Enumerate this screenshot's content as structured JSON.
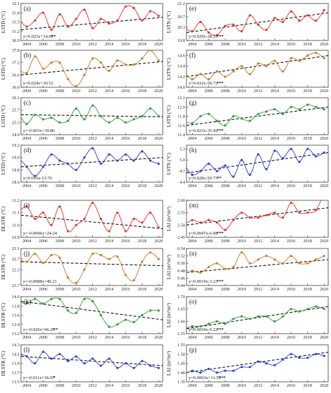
{
  "chart_data": [
    {
      "panel": "(a)",
      "type": "line",
      "ylabel": "LSTD (°C)",
      "ylim": [
        30.9,
        32.1
      ],
      "yticks": [
        "30.9",
        "31.2",
        "31.5",
        "31.8",
        "32.1"
      ],
      "xlim": [
        2003.3,
        2020.5
      ],
      "xticks": [
        "2004",
        "2006",
        "2008",
        "2010",
        "2012",
        "2014",
        "2016",
        "2018",
        "2020"
      ],
      "color": "#e8302a",
      "trend_eq": "y=0.023x+14.09",
      "sig": "**",
      "trend": [
        31.25,
        31.65
      ],
      "x": [
        2003,
        2004,
        2005,
        2006,
        2007,
        2008,
        2009,
        2010,
        2011,
        2012,
        2013,
        2014,
        2015,
        2016,
        2017,
        2018,
        2019,
        2020
      ],
      "y": [
        31.6,
        31.35,
        31.55,
        31.8,
        31.25,
        31.75,
        31.35,
        31.6,
        31.9,
        31.3,
        31.6,
        31.45,
        31.55,
        32.0,
        31.95,
        31.55,
        31.85,
        31.7
      ]
    },
    {
      "panel": "(b)",
      "type": "line",
      "ylabel": "LSTD (°C)",
      "ylim": [
        36.0,
        37.8
      ],
      "yticks": [
        "36.0",
        "36.6",
        "37.2",
        "37.8"
      ],
      "xlim": [
        2003.3,
        2020.5
      ],
      "xticks": [
        "2004",
        "2006",
        "2008",
        "2010",
        "2012",
        "2014",
        "2016",
        "2018",
        "2020"
      ],
      "color": "#c8792a",
      "trend_eq": "y=0.024x+10.52",
      "sig": "",
      "trend": [
        36.6,
        37.25
      ],
      "x": [
        2003,
        2004,
        2005,
        2006,
        2007,
        2008,
        2009,
        2010,
        2011,
        2012,
        2013,
        2014,
        2015,
        2016,
        2017,
        2018,
        2019,
        2020
      ],
      "y": [
        36.9,
        36.7,
        37.5,
        36.9,
        37.2,
        37.2,
        36.4,
        36.05,
        36.6,
        37.4,
        37.2,
        36.8,
        37.3,
        37.1,
        37.1,
        37.4,
        37.8,
        37.3
      ]
    },
    {
      "panel": "(c)",
      "type": "line",
      "ylabel": "LSTD (°C)",
      "ylim": [
        24.9,
        26.1
      ],
      "yticks": [
        "24.9",
        "25.3",
        "25.7",
        "26.1"
      ],
      "xlim": [
        2003.3,
        2020.5
      ],
      "xticks": [
        "2004",
        "2006",
        "2008",
        "2010",
        "2012",
        "2014",
        "2016",
        "2018",
        "2020"
      ],
      "color": "#2e9a3a",
      "trend_eq": "y=-0.003x+30.86",
      "sig": "",
      "trend": [
        25.55,
        25.48
      ],
      "x": [
        2003,
        2004,
        2005,
        2006,
        2007,
        2008,
        2009,
        2010,
        2011,
        2012,
        2013,
        2014,
        2015,
        2016,
        2017,
        2018,
        2019,
        2020
      ],
      "y": [
        25.6,
        25.25,
        25.55,
        25.4,
        25.45,
        25.3,
        25.35,
        25.75,
        25.4,
        25.85,
        25.5,
        25.3,
        25.45,
        25.3,
        25.4,
        25.5,
        25.75,
        25.5
      ]
    },
    {
      "panel": "(d)",
      "type": "line",
      "ylabel": "LSTD (°C)",
      "ylim": [
        18.6,
        19.2
      ],
      "yticks": [
        "18.6",
        "18.8",
        "19.0",
        "19.2"
      ],
      "xlim": [
        2003.3,
        2020.5
      ],
      "xticks": [
        "2004",
        "2006",
        "2008",
        "2010",
        "2012",
        "2014",
        "2016",
        "2018",
        "2020"
      ],
      "color": "#2a3fd8",
      "trend_eq": "y=0.016x-13.76",
      "sig": "",
      "trend": [
        18.85,
        19.0
      ],
      "x": [
        2003,
        2004,
        2005,
        2006,
        2007,
        2008,
        2009,
        2010,
        2011,
        2012,
        2013,
        2014,
        2015,
        2016,
        2017,
        2018,
        2019,
        2020
      ],
      "y": [
        19.0,
        18.85,
        18.7,
        18.85,
        19.05,
        18.95,
        18.9,
        18.8,
        19.0,
        19.15,
        18.9,
        19.05,
        18.95,
        19.05,
        18.95,
        19.1,
        18.95,
        18.9
      ]
    },
    {
      "panel": "(e)",
      "type": "line",
      "ylabel": "LSTN (°C)",
      "ylim": [
        19.8,
        21.2
      ],
      "yticks": [
        "19.8",
        "20.3",
        "20.7",
        "21.2"
      ],
      "xlim": [
        2003.3,
        2020.5
      ],
      "xticks": [
        "2004",
        "2006",
        "2008",
        "2010",
        "2012",
        "2014",
        "2016",
        "2018",
        "2020"
      ],
      "color": "#e8302a",
      "trend_eq": "y=0.029x-38.33",
      "sig": "***",
      "trend": [
        20.1,
        20.85
      ],
      "x": [
        2003,
        2004,
        2005,
        2006,
        2007,
        2008,
        2009,
        2010,
        2011,
        2012,
        2013,
        2014,
        2015,
        2016,
        2017,
        2018,
        2019,
        2020
      ],
      "y": [
        20.3,
        20.15,
        20.5,
        20.1,
        20.0,
        20.35,
        20.4,
        20.15,
        20.75,
        20.4,
        20.2,
        20.65,
        20.5,
        20.9,
        20.55,
        20.75,
        20.55,
        20.95
      ]
    },
    {
      "panel": "(f)",
      "type": "line",
      "ylabel": "LSTN (°C)",
      "ylim": [
        14.0,
        14.7
      ],
      "yticks": [
        "14.0",
        "14.2",
        "14.4",
        "14.6"
      ],
      "xlim": [
        2003.3,
        2020.5
      ],
      "xticks": [
        "2004",
        "2006",
        "2008",
        "2010",
        "2012",
        "2014",
        "2016",
        "2018",
        "2020"
      ],
      "color": "#c8792a",
      "trend_eq": "y=0.032x-50.73",
      "sig": "***",
      "trend": [
        14.2,
        14.6
      ],
      "x": [
        2003,
        2004,
        2005,
        2006,
        2007,
        2008,
        2009,
        2010,
        2011,
        2012,
        2013,
        2014,
        2015,
        2016,
        2017,
        2018,
        2019,
        2020
      ],
      "y": [
        14.3,
        14.15,
        14.25,
        14.15,
        14.3,
        14.2,
        14.3,
        14.4,
        14.25,
        14.45,
        14.4,
        14.5,
        14.3,
        14.55,
        14.5,
        14.6,
        14.65,
        14.55
      ]
    },
    {
      "panel": "(g)",
      "type": "line",
      "ylabel": "LSTN (°C)",
      "ylim": [
        11.4,
        12.2
      ],
      "yticks": [
        "11.4",
        "11.6",
        "11.8",
        "12.0",
        "12.2"
      ],
      "xlim": [
        2003.3,
        2020.5
      ],
      "xticks": [
        "2004",
        "2006",
        "2008",
        "2010",
        "2012",
        "2014",
        "2016",
        "2018",
        "2020"
      ],
      "color": "#2e9a3a",
      "trend_eq": "y=0.023x-35.42",
      "sig": "***",
      "trend": [
        11.6,
        12.0
      ],
      "x": [
        2003,
        2004,
        2005,
        2006,
        2007,
        2008,
        2009,
        2010,
        2011,
        2012,
        2013,
        2014,
        2015,
        2016,
        2017,
        2018,
        2019,
        2020
      ],
      "y": [
        11.7,
        11.65,
        11.8,
        11.85,
        11.7,
        11.6,
        11.8,
        11.75,
        11.7,
        11.85,
        11.9,
        11.95,
        11.85,
        12.0,
        11.95,
        12.05,
        12.0,
        11.95
      ]
    },
    {
      "panel": "(h)",
      "type": "line",
      "ylabel": "LSTN (°C)",
      "ylim": [
        4.4,
        5.4
      ],
      "yticks": [
        "4.4",
        "4.7",
        "5.0",
        "5.3"
      ],
      "xlim": [
        2003.3,
        2020.5
      ],
      "xticks": [
        "2004",
        "2006",
        "2008",
        "2010",
        "2012",
        "2014",
        "2016",
        "2018",
        "2020"
      ],
      "color": "#2a3fd8",
      "trend_eq": "y=0.028x-50.73",
      "sig": "**",
      "trend": [
        4.65,
        5.2
      ],
      "x": [
        2003,
        2004,
        2005,
        2006,
        2007,
        2008,
        2009,
        2010,
        2011,
        2012,
        2013,
        2014,
        2015,
        2016,
        2017,
        2018,
        2019,
        2020
      ],
      "y": [
        4.9,
        4.6,
        4.7,
        4.9,
        4.7,
        4.85,
        4.55,
        5.0,
        4.6,
        5.15,
        4.75,
        5.25,
        5.05,
        5.3,
        4.95,
        5.3,
        5.1,
        5.2
      ]
    },
    {
      "panel": "(i)",
      "type": "line",
      "ylabel": "DLSTR (°C)",
      "ylim": [
        10.9,
        11.2
      ],
      "yticks": [
        "10.9",
        "11.0",
        "11.1",
        "11.2"
      ],
      "xlim": [
        2003.3,
        2020.5
      ],
      "xticks": [
        "2004",
        "2006",
        "2008",
        "2010",
        "2012",
        "2014",
        "2016",
        "2018",
        "2020"
      ],
      "color": "#e8302a",
      "trend_eq": "y=-0.0066x+24.24",
      "sig": "",
      "trend": [
        11.08,
        10.97
      ],
      "x": [
        2003,
        2004,
        2005,
        2006,
        2007,
        2008,
        2009,
        2010,
        2011,
        2012,
        2013,
        2014,
        2015,
        2016,
        2017,
        2018,
        2019,
        2020
      ],
      "y": [
        11.1,
        11.15,
        11.05,
        11.1,
        11.0,
        11.15,
        10.95,
        11.0,
        11.05,
        11.18,
        11.05,
        10.95,
        11.1,
        10.95,
        11.05,
        11.02,
        11.1,
        10.98
      ]
    },
    {
      "panel": "(j)",
      "type": "line",
      "ylabel": "DLSTR (°C)",
      "ylim": [
        21.7,
        23.1
      ],
      "yticks": [
        "21.7",
        "22.3",
        "22.7",
        "23.1"
      ],
      "xlim": [
        2003.3,
        2020.5
      ],
      "xticks": [
        "2004",
        "2006",
        "2008",
        "2010",
        "2012",
        "2014",
        "2016",
        "2018",
        "2020"
      ],
      "color": "#c8792a",
      "trend_eq": "y=-0.0088x+40.21",
      "sig": "",
      "trend": [
        22.6,
        22.45
      ],
      "x": [
        2003,
        2004,
        2005,
        2006,
        2007,
        2008,
        2009,
        2010,
        2011,
        2012,
        2013,
        2014,
        2015,
        2016,
        2017,
        2018,
        2019,
        2020
      ],
      "y": [
        22.7,
        22.6,
        22.9,
        22.55,
        22.85,
        22.75,
        22.0,
        21.8,
        22.3,
        22.9,
        22.85,
        22.7,
        22.8,
        22.1,
        21.9,
        22.6,
        22.95,
        22.7
      ]
    },
    {
      "panel": "(k)",
      "type": "line",
      "ylabel": "DLSTR (°C)",
      "ylim": [
        13.2,
        14.0
      ],
      "yticks": [
        "13.2",
        "13.4",
        "13.6",
        "13.8",
        "14.0"
      ],
      "xlim": [
        2003.3,
        2020.5
      ],
      "xticks": [
        "2004",
        "2006",
        "2008",
        "2010",
        "2012",
        "2014",
        "2016",
        "2018",
        "2020"
      ],
      "color": "#2e9a3a",
      "trend_eq": "y=-0.026x+66.29",
      "sig": "**",
      "trend": [
        13.9,
        13.5
      ],
      "x": [
        2003,
        2004,
        2005,
        2006,
        2007,
        2008,
        2009,
        2010,
        2011,
        2012,
        2013,
        2014,
        2015,
        2016,
        2017,
        2018,
        2019,
        2020
      ],
      "y": [
        13.9,
        13.85,
        13.95,
        13.85,
        13.95,
        13.95,
        13.7,
        13.65,
        13.95,
        13.9,
        13.6,
        13.35,
        13.4,
        13.5,
        13.45,
        13.6,
        13.7,
        13.7
      ]
    },
    {
      "panel": "(l)",
      "type": "line",
      "ylabel": "DLSTR (°C)",
      "ylim": [
        13.5,
        14.3
      ],
      "yticks": [
        "13.5",
        "13.7",
        "13.9",
        "14.1",
        "14.3"
      ],
      "xlim": [
        2003.3,
        2020.5
      ],
      "xticks": [
        "2004",
        "2006",
        "2008",
        "2010",
        "2012",
        "2014",
        "2016",
        "2018",
        "2020"
      ],
      "color": "#2a3fd8",
      "trend_eq": "y=-0.011x+36.97",
      "sig": "*",
      "trend": [
        14.05,
        13.85
      ],
      "x": [
        2003,
        2004,
        2005,
        2006,
        2007,
        2008,
        2009,
        2010,
        2011,
        2012,
        2013,
        2014,
        2015,
        2016,
        2017,
        2018,
        2019,
        2020
      ],
      "y": [
        14.1,
        14.05,
        13.9,
        14.15,
        14.0,
        14.1,
        13.95,
        14.05,
        13.9,
        14.0,
        13.85,
        14.0,
        13.8,
        13.9,
        13.8,
        13.95,
        13.85,
        13.8
      ]
    },
    {
      "panel": "(m)",
      "type": "line",
      "ylabel": "LAI (m²/m²)",
      "ylim": [
        2.45,
        2.6
      ],
      "yticks": [
        "2.45",
        "2.50",
        "2.55",
        "2.60"
      ],
      "xlim": [
        2003.3,
        2020.5
      ],
      "xticks": [
        "2004",
        "2006",
        "2008",
        "2010",
        "2012",
        "2014",
        "2016",
        "2018",
        "2020"
      ],
      "color": "#e8302a",
      "trend_eq": "y=0.0047x-6.98",
      "sig": "***",
      "trend": [
        2.5,
        2.57
      ],
      "x": [
        2003,
        2004,
        2005,
        2006,
        2007,
        2008,
        2009,
        2010,
        2011,
        2012,
        2013,
        2014,
        2015,
        2016,
        2017,
        2018,
        2019,
        2020
      ],
      "y": [
        2.5,
        2.52,
        2.51,
        2.52,
        2.51,
        2.48,
        2.52,
        2.55,
        2.53,
        2.53,
        2.54,
        2.55,
        2.53,
        2.59,
        2.55,
        2.55,
        2.56,
        2.63
      ]
    },
    {
      "panel": "(n)",
      "type": "line",
      "ylabel": "LAI (m²/m²)",
      "ylim": [
        0.44,
        0.54
      ],
      "yticks": [
        "0.44",
        "0.46",
        "0.48",
        "0.50",
        "0.52",
        "0.54"
      ],
      "xlim": [
        2003.3,
        2020.5
      ],
      "xticks": [
        "2004",
        "2006",
        "2008",
        "2010",
        "2012",
        "2014",
        "2016",
        "2018",
        "2020"
      ],
      "color": "#c8792a",
      "trend_eq": "y=0.0019x-3.23",
      "sig": "***",
      "trend": [
        0.475,
        0.51
      ],
      "x": [
        2003,
        2004,
        2005,
        2006,
        2007,
        2008,
        2009,
        2010,
        2011,
        2012,
        2013,
        2014,
        2015,
        2016,
        2017,
        2018,
        2019,
        2020
      ],
      "y": [
        0.47,
        0.48,
        0.475,
        0.49,
        0.5,
        0.485,
        0.49,
        0.53,
        0.5,
        0.51,
        0.52,
        0.51,
        0.5,
        0.52,
        0.5,
        0.5,
        0.51,
        0.52
      ]
    },
    {
      "panel": "(o)",
      "type": "line",
      "ylabel": "LAI (m²/m²)",
      "ylim": [
        1.55,
        1.7
      ],
      "yticks": [
        "1.55",
        "1.60",
        "1.65",
        "1.70"
      ],
      "xlim": [
        2003.3,
        2020.5
      ],
      "xticks": [
        "2004",
        "2006",
        "2008",
        "2010",
        "2012",
        "2014",
        "2016",
        "2018",
        "2020"
      ],
      "color": "#2e9a3a",
      "trend_eq": "y=0.0054x-9.22",
      "sig": "***",
      "trend": [
        1.57,
        1.66
      ],
      "x": [
        2003,
        2004,
        2005,
        2006,
        2007,
        2008,
        2009,
        2010,
        2011,
        2012,
        2013,
        2014,
        2015,
        2016,
        2017,
        2018,
        2019,
        2020
      ],
      "y": [
        1.57,
        1.58,
        1.58,
        1.59,
        1.6,
        1.59,
        1.61,
        1.62,
        1.61,
        1.62,
        1.62,
        1.6,
        1.62,
        1.65,
        1.64,
        1.65,
        1.66,
        1.65
      ]
    },
    {
      "panel": "(p)",
      "type": "line",
      "ylabel": "LAI (m²/m²)",
      "ylim": [
        1.35,
        1.55
      ],
      "yticks": [
        "1.35",
        "1.40",
        "1.45",
        "1.50",
        "1.55"
      ],
      "xlim": [
        2003.3,
        2020.5
      ],
      "xticks": [
        "2004",
        "2006",
        "2008",
        "2010",
        "2012",
        "2014",
        "2016",
        "2018",
        "2020"
      ],
      "color": "#2a3fd8",
      "trend_eq": "y=0.0063x+11.59",
      "sig": "***",
      "trend": [
        1.4,
        1.51
      ],
      "x": [
        2003,
        2004,
        2005,
        2006,
        2007,
        2008,
        2009,
        2010,
        2011,
        2012,
        2013,
        2014,
        2015,
        2016,
        2017,
        2018,
        2019,
        2020
      ],
      "y": [
        1.39,
        1.41,
        1.4,
        1.42,
        1.4,
        1.41,
        1.41,
        1.43,
        1.43,
        1.46,
        1.45,
        1.44,
        1.47,
        1.5,
        1.48,
        1.48,
        1.5,
        1.49
      ]
    }
  ]
}
